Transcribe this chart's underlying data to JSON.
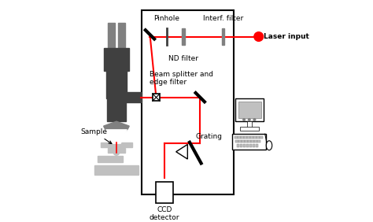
{
  "bg_color": "#ffffff",
  "box_color": "#000000",
  "laser_color": "#ff0000",
  "dark_gray": "#404040",
  "mid_gray": "#808080",
  "light_gray": "#c0c0c0",
  "labels": {
    "pinhole": "Pinhole",
    "nd_filter": "ND filter",
    "interf_filter": "Interf. filter",
    "laser_input": "Laser input",
    "beam_splitter": "Beam splitter and\nedge filter",
    "grating": "Grating",
    "ccd": "CCD\ndetector",
    "sample": "Sample"
  }
}
